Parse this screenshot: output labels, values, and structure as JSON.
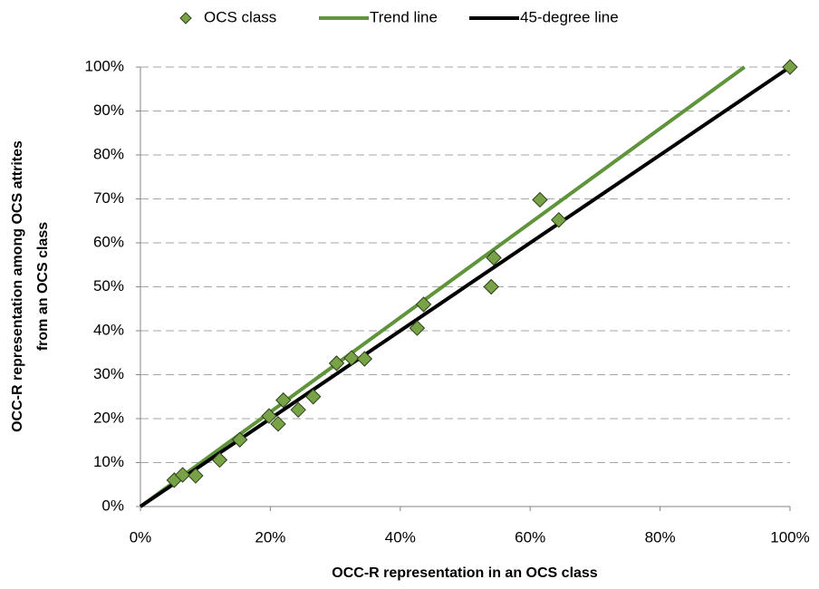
{
  "chart_data": {
    "type": "scatter",
    "xlabel": "OCC-R representation in an OCS class",
    "ylabel": [
      "OCC-R representation among OCS attrites",
      "from an OCS class"
    ],
    "xlim": [
      0,
      100
    ],
    "ylim": [
      0,
      100
    ],
    "xticks": [
      {
        "value": 0,
        "label": "0%"
      },
      {
        "value": 20,
        "label": "20%"
      },
      {
        "value": 40,
        "label": "40%"
      },
      {
        "value": 60,
        "label": "60%"
      },
      {
        "value": 80,
        "label": "80%"
      },
      {
        "value": 100,
        "label": "100%"
      }
    ],
    "yticks": [
      {
        "value": 0,
        "label": "0%"
      },
      {
        "value": 10,
        "label": "10%"
      },
      {
        "value": 20,
        "label": "20%"
      },
      {
        "value": 30,
        "label": "30%"
      },
      {
        "value": 40,
        "label": "40%"
      },
      {
        "value": 50,
        "label": "50%"
      },
      {
        "value": 60,
        "label": "60%"
      },
      {
        "value": 70,
        "label": "70%"
      },
      {
        "value": 80,
        "label": "80%"
      },
      {
        "value": 90,
        "label": "90%"
      },
      {
        "value": 100,
        "label": "100%"
      }
    ],
    "grid": true,
    "legend": "top",
    "series": [
      {
        "name": "OCS class",
        "type": "scatter",
        "color": "#77a346",
        "x": [
          5.2,
          6.5,
          8.5,
          12.2,
          15.3,
          19.8,
          21.2,
          22,
          24.3,
          26.6,
          30.2,
          32.5,
          34.5,
          42.6,
          43.6,
          54,
          54.4,
          61.5,
          64.4,
          100
        ],
        "values": [
          6,
          7.2,
          7,
          10.6,
          15.2,
          20.6,
          18.8,
          24.2,
          22,
          25,
          32.6,
          33.8,
          33.6,
          40.6,
          46,
          50,
          56.6,
          69.8,
          65.2,
          100
        ]
      },
      {
        "name": "Trend line",
        "type": "line",
        "color": "#5f943a",
        "x": [
          0,
          93
        ],
        "values": [
          0,
          100
        ]
      },
      {
        "name": "45-degree line",
        "type": "line",
        "color": "#000000",
        "x": [
          0,
          100
        ],
        "values": [
          0,
          100
        ]
      }
    ]
  }
}
